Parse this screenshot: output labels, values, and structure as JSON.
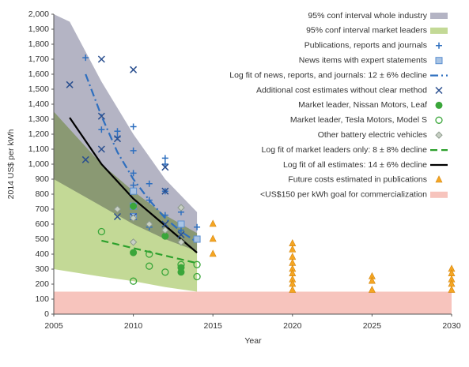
{
  "chart_data": {
    "type": "scatter",
    "x_label": "Year",
    "y_label": "2014 US$ per kWh",
    "xlim": [
      2005,
      2030
    ],
    "ylim": [
      0,
      2000
    ],
    "xticks": [
      2005,
      2010,
      2015,
      2020,
      2025,
      2030
    ],
    "yticks": [
      0,
      100,
      200,
      300,
      400,
      500,
      600,
      700,
      800,
      900,
      {
        "value": 1000,
        "label": "1,000"
      },
      {
        "value": 1100,
        "label": "1,100"
      },
      {
        "value": 1200,
        "label": "1,200"
      },
      {
        "value": 1300,
        "label": "1,300"
      },
      {
        "value": 1400,
        "label": "1,400"
      },
      {
        "value": 1500,
        "label": "1,500"
      },
      {
        "value": 1600,
        "label": "1,600"
      },
      {
        "value": 1700,
        "label": "1,700"
      },
      {
        "value": 1800,
        "label": "1,800"
      },
      {
        "value": 1900,
        "label": "1,900"
      },
      {
        "value": 2000,
        "label": "2,000"
      }
    ],
    "legend_position": "upper right",
    "series": [
      {
        "name": "95% conf interval whole industry",
        "kind": "band",
        "color": "#b4b4c4",
        "x": [
          2005,
          2006,
          2008,
          2010,
          2012,
          2014
        ],
        "upper": [
          2000,
          1950,
          1550,
          1200,
          900,
          680
        ],
        "lower": [
          900,
          840,
          720,
          600,
          500,
          420
        ]
      },
      {
        "name": "95% conf interval market leaders",
        "kind": "band",
        "color": "#c3d996",
        "x": [
          2005,
          2008,
          2010,
          2012,
          2014
        ],
        "upper": [
          1350,
          1000,
          820,
          660,
          540
        ],
        "lower": [
          300,
          250,
          220,
          180,
          150
        ]
      },
      {
        "name": "Publications, reports and journals",
        "kind": "scatter",
        "marker": "plus",
        "color": "#2e6fbf",
        "x": [
          2007,
          2008,
          2009,
          2009,
          2010,
          2010,
          2010,
          2010,
          2011,
          2011,
          2011,
          2012,
          2012,
          2012,
          2012,
          2012,
          2013,
          2013,
          2013,
          2014
        ],
        "values": [
          1710,
          1230,
          1180,
          1220,
          1250,
          1090,
          940,
          860,
          870,
          760,
          580,
          1040,
          1000,
          820,
          660,
          520,
          560,
          680,
          480,
          580
        ]
      },
      {
        "name": "News items with expert statements",
        "kind": "scatter",
        "marker": "square",
        "color": "#5b8fd0",
        "x": [
          2010,
          2010,
          2010,
          2013,
          2014
        ],
        "values": [
          820,
          720,
          650,
          600,
          500
        ]
      },
      {
        "name": "Log fit of news, reports, and journals: 12 ± 6% decline",
        "kind": "line",
        "dash": "10,4,2,4",
        "color": "#2e6fbf",
        "x": [
          2007,
          2008,
          2009,
          2010,
          2011,
          2012,
          2013,
          2014
        ],
        "values": [
          1600,
          1320,
          1080,
          900,
          760,
          640,
          550,
          480
        ]
      },
      {
        "name": "Additional cost estimates without clear method",
        "kind": "scatter",
        "marker": "cross",
        "color": "#2a4f8f",
        "x": [
          2006,
          2007,
          2008,
          2008,
          2008,
          2009,
          2009,
          2010,
          2010,
          2012,
          2012,
          2012,
          2013
        ],
        "values": [
          1530,
          1030,
          1700,
          1100,
          1320,
          1170,
          650,
          1630,
          650,
          980,
          820,
          600,
          530
        ]
      },
      {
        "name": "Market leader, Nissan Motors, Leaf",
        "kind": "scatter",
        "marker": "dot",
        "color": "#3aa63a",
        "x": [
          2010,
          2010,
          2012,
          2013,
          2013
        ],
        "values": [
          720,
          410,
          520,
          280,
          310
        ]
      },
      {
        "name": "Market leader, Tesla Motors, Model S",
        "kind": "scatter",
        "marker": "ring",
        "color": "#3aa63a",
        "x": [
          2008,
          2010,
          2011,
          2011,
          2012,
          2013,
          2014,
          2014
        ],
        "values": [
          550,
          220,
          400,
          320,
          280,
          330,
          330,
          250
        ]
      },
      {
        "name": "Other battery electric vehicles",
        "kind": "scatter",
        "marker": "diamond",
        "color": "#8c9a8c",
        "x": [
          2009,
          2010,
          2010,
          2011,
          2012,
          2013,
          2013
        ],
        "values": [
          700,
          640,
          480,
          600,
          560,
          710,
          480
        ]
      },
      {
        "name": "Log fit of market leaders only: 8 ± 8% decline",
        "kind": "line",
        "dash": "9,5",
        "color": "#2ca02c",
        "x": [
          2008,
          2010,
          2012,
          2014
        ],
        "values": [
          490,
          440,
          390,
          340
        ]
      },
      {
        "name": "Log fit of all estimates: 14 ± 6% decline",
        "kind": "line",
        "color": "#000000",
        "x": [
          2006,
          2008,
          2010,
          2012,
          2014
        ],
        "values": [
          1310,
          1000,
          770,
          590,
          410
        ]
      },
      {
        "name": "Future costs estimated in publications",
        "kind": "scatter",
        "marker": "triangle",
        "color": "#f5a623",
        "x": [
          2015,
          2015,
          2015,
          2020,
          2020,
          2020,
          2020,
          2020,
          2020,
          2020,
          2020,
          2020,
          2025,
          2025,
          2025,
          2030,
          2030,
          2030,
          2030,
          2030
        ],
        "values": [
          600,
          500,
          400,
          470,
          430,
          380,
          340,
          300,
          270,
          230,
          200,
          160,
          250,
          220,
          160,
          300,
          270,
          230,
          200,
          160
        ]
      },
      {
        "name": "<US$150 per kWh goal for commercialization",
        "kind": "band",
        "color": "#f7c4bd",
        "x": [
          2005,
          2030
        ],
        "upper": [
          150,
          150
        ],
        "lower": [
          0,
          0
        ]
      }
    ]
  }
}
